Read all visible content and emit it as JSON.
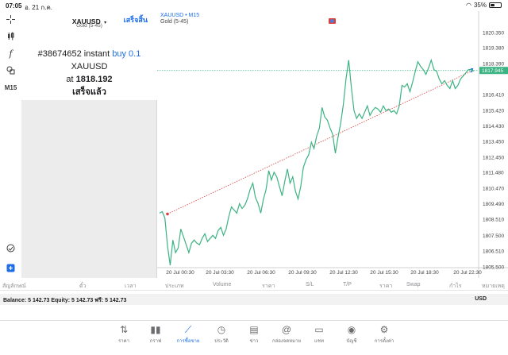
{
  "status": {
    "time": "07:05",
    "date": "อ. 21 ก.ค.",
    "battery": "35%",
    "battery_level": 0.35
  },
  "toolbar": {
    "timeframe": "M15"
  },
  "order_panel": {
    "symbol": "XAUUSD",
    "symbol_desc": "Gold (5-45)",
    "done_label": "เสร็จสิ้น",
    "result_prefix": "#38674652 instant",
    "result_action": "buy 0.1",
    "result_symbol": "XAUUSD",
    "result_at": "at",
    "result_price": "1818.192",
    "result_status": "เสร็จแล้ว"
  },
  "chart": {
    "title": "XAUUSD • M15",
    "subtitle": "Gold (5-45)",
    "price_labels": [
      "1820.350",
      "1819.380",
      "1818.390",
      "1817.945",
      "1816.410",
      "1815.420",
      "1814.430",
      "1813.450",
      "1812.450",
      "1811.480",
      "1810.470",
      "1809.490",
      "1808.510",
      "1807.500",
      "1806.510",
      "1805.500"
    ],
    "current_price": "1817.945",
    "time_labels": [
      "20 Jul 00:30",
      "20 Jul 03:30",
      "20 Jul 06:30",
      "20 Jul 09:30",
      "20 Jul 12:30",
      "20 Jul 15:30",
      "20 Jul 18:30",
      "20 Jul 22:30"
    ],
    "colors": {
      "line": "#3cb383",
      "price_line": "#3cb383",
      "trade_line": "#d94040",
      "price_tag": "#3cb383"
    }
  },
  "chart_data": {
    "type": "line",
    "title": "",
    "xlabel": "",
    "ylabel": "",
    "ylim": [
      1805.5,
      1820.8
    ],
    "y": [
      1808.9,
      1809.0,
      1808.6,
      1806.8,
      1805.6,
      1807.2,
      1806.4,
      1806.7,
      1807.9,
      1807.4,
      1806.9,
      1806.4,
      1807.0,
      1807.2,
      1807.0,
      1806.9,
      1807.3,
      1807.6,
      1807.1,
      1807.3,
      1807.5,
      1807.3,
      1807.8,
      1808.0,
      1807.5,
      1807.9,
      1808.7,
      1809.3,
      1809.1,
      1808.9,
      1809.5,
      1809.2,
      1809.4,
      1809.8,
      1810.4,
      1810.8,
      1809.9,
      1809.5,
      1808.9,
      1809.8,
      1810.4,
      1811.6,
      1811.0,
      1811.5,
      1811.2,
      1810.6,
      1810.0,
      1810.9,
      1811.7,
      1810.8,
      1811.2,
      1810.3,
      1809.8,
      1810.6,
      1811.8,
      1812.3,
      1812.6,
      1813.4,
      1813.0,
      1813.8,
      1814.3,
      1815.6,
      1815.0,
      1814.8,
      1814.3,
      1813.9,
      1812.7,
      1813.7,
      1814.6,
      1815.8,
      1817.4,
      1818.6,
      1816.9,
      1815.4,
      1814.9,
      1815.2,
      1814.9,
      1815.3,
      1815.7,
      1815.1,
      1815.4,
      1815.6,
      1815.5,
      1815.3,
      1815.7,
      1815.4,
      1815.5,
      1815.3,
      1815.4,
      1815.2,
      1815.7,
      1817.0,
      1816.9,
      1817.1,
      1816.6,
      1817.2,
      1817.9,
      1818.5,
      1818.2,
      1818.0,
      1817.7,
      1818.1,
      1818.6,
      1818.0,
      1817.9,
      1817.4,
      1817.1,
      1817.3,
      1817.0,
      1816.8,
      1817.3,
      1816.8,
      1817.0,
      1817.4,
      1817.6,
      1817.8,
      1818.0,
      1818.0,
      1817.9
    ],
    "x_ticks": [
      "20 Jul 00:30",
      "20 Jul 03:30",
      "20 Jul 06:30",
      "20 Jul 09:30",
      "20 Jul 12:30",
      "20 Jul 15:30",
      "20 Jul 18:30",
      "20 Jul 22:30"
    ],
    "trade_entry": 1808.85,
    "trade_close": 1817.95,
    "grid": false
  },
  "columns": [
    "สัญลักษณ์",
    "ตั๋ว",
    "เวลา",
    "ประเภท",
    "Volume",
    "ราคา",
    "S/L",
    "T/P",
    "ราคา",
    "Swap",
    "กำไร",
    "หมายเหตุ"
  ],
  "balance": {
    "text": "Balance: 5 142.73  Equity: 5 142.73  ฟรี: 5 142.73",
    "currency": "USD"
  },
  "tabs": [
    {
      "label": "ราคา",
      "icon": "quotes-icon"
    },
    {
      "label": "กราฟ",
      "icon": "chart-icon"
    },
    {
      "label": "การซื้อขาย",
      "icon": "trade-icon"
    },
    {
      "label": "ประวัติ",
      "icon": "history-icon"
    },
    {
      "label": "ข่าว",
      "icon": "news-icon"
    },
    {
      "label": "กล่องจดหมาย",
      "icon": "mailbox-icon"
    },
    {
      "label": "แชท",
      "icon": "chat-icon"
    },
    {
      "label": "บัญชี",
      "icon": "account-icon"
    },
    {
      "label": "การตั้งค่า",
      "icon": "settings-icon"
    }
  ]
}
